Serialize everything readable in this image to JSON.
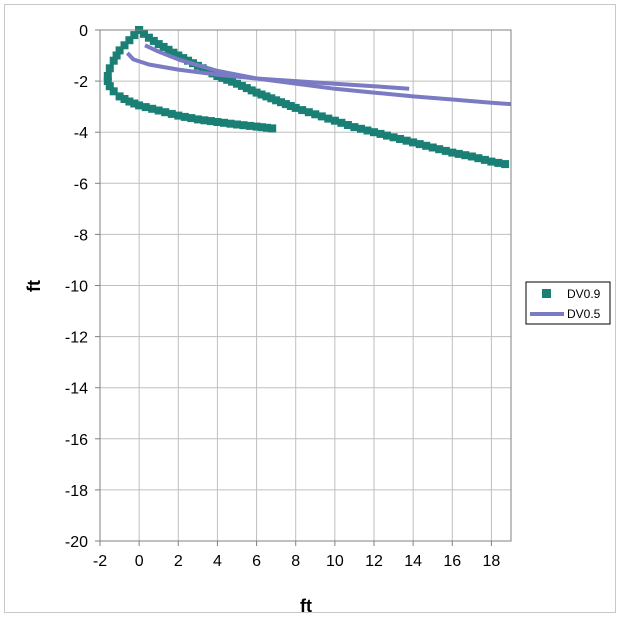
{
  "chart_data": {
    "type": "scatter",
    "title": "",
    "xlabel": "ft",
    "ylabel": "ft",
    "xlim": [
      -2,
      19
    ],
    "ylim": [
      -20,
      0
    ],
    "xticks": [
      -2,
      0,
      2,
      4,
      6,
      8,
      10,
      12,
      14,
      16,
      18
    ],
    "yticks": [
      0,
      -2,
      -4,
      -6,
      -8,
      -10,
      -12,
      -14,
      -16,
      -18,
      -20
    ],
    "grid": true,
    "legend_position": "right",
    "series": [
      {
        "name": "DV0.9",
        "style": "square-markers",
        "color": "#1a7f74",
        "branches": [
          {
            "x": [
              0,
              -0.5,
              -1.0,
              -1.3,
              -1.5,
              -1.6,
              -1.6,
              -1.5,
              -1.3,
              -1.0,
              -0.5,
              0,
              1.0,
              2.0,
              3.0,
              4.0,
              5.0,
              6.0,
              6.8
            ],
            "y": [
              0,
              -0.4,
              -0.8,
              -1.2,
              -1.5,
              -1.8,
              -2.0,
              -2.2,
              -2.4,
              -2.6,
              -2.8,
              -2.95,
              -3.15,
              -3.35,
              -3.5,
              -3.6,
              -3.7,
              -3.78,
              -3.85
            ]
          },
          {
            "x": [
              0,
              0.5,
              1.0,
              2.0,
              3.0,
              4.0,
              5.0,
              6.0,
              7.0,
              8.0,
              9.0,
              10.0,
              11.0,
              12.0,
              13.0,
              14.0,
              15.0,
              16.0,
              17.0,
              18.0,
              18.7
            ],
            "y": [
              0,
              -0.3,
              -0.55,
              -1.0,
              -1.4,
              -1.8,
              -2.1,
              -2.45,
              -2.75,
              -3.05,
              -3.3,
              -3.55,
              -3.8,
              -4.0,
              -4.2,
              -4.4,
              -4.6,
              -4.8,
              -4.95,
              -5.15,
              -5.25
            ]
          }
        ]
      },
      {
        "name": "DV0.5",
        "style": "line",
        "color": "#7b7bc4",
        "branches": [
          {
            "x": [
              -0.6,
              -0.3,
              0.5,
              2,
              4,
              6,
              8,
              10,
              12,
              13.8
            ],
            "y": [
              -0.9,
              -1.15,
              -1.35,
              -1.55,
              -1.75,
              -1.9,
              -2.0,
              -2.1,
              -2.2,
              -2.3
            ]
          },
          {
            "x": [
              0.3,
              1,
              2,
              4,
              6,
              8,
              10,
              12,
              14,
              16,
              18,
              19
            ],
            "y": [
              -0.6,
              -0.85,
              -1.15,
              -1.6,
              -1.9,
              -2.1,
              -2.3,
              -2.45,
              -2.6,
              -2.72,
              -2.85,
              -2.9
            ]
          }
        ]
      }
    ]
  }
}
